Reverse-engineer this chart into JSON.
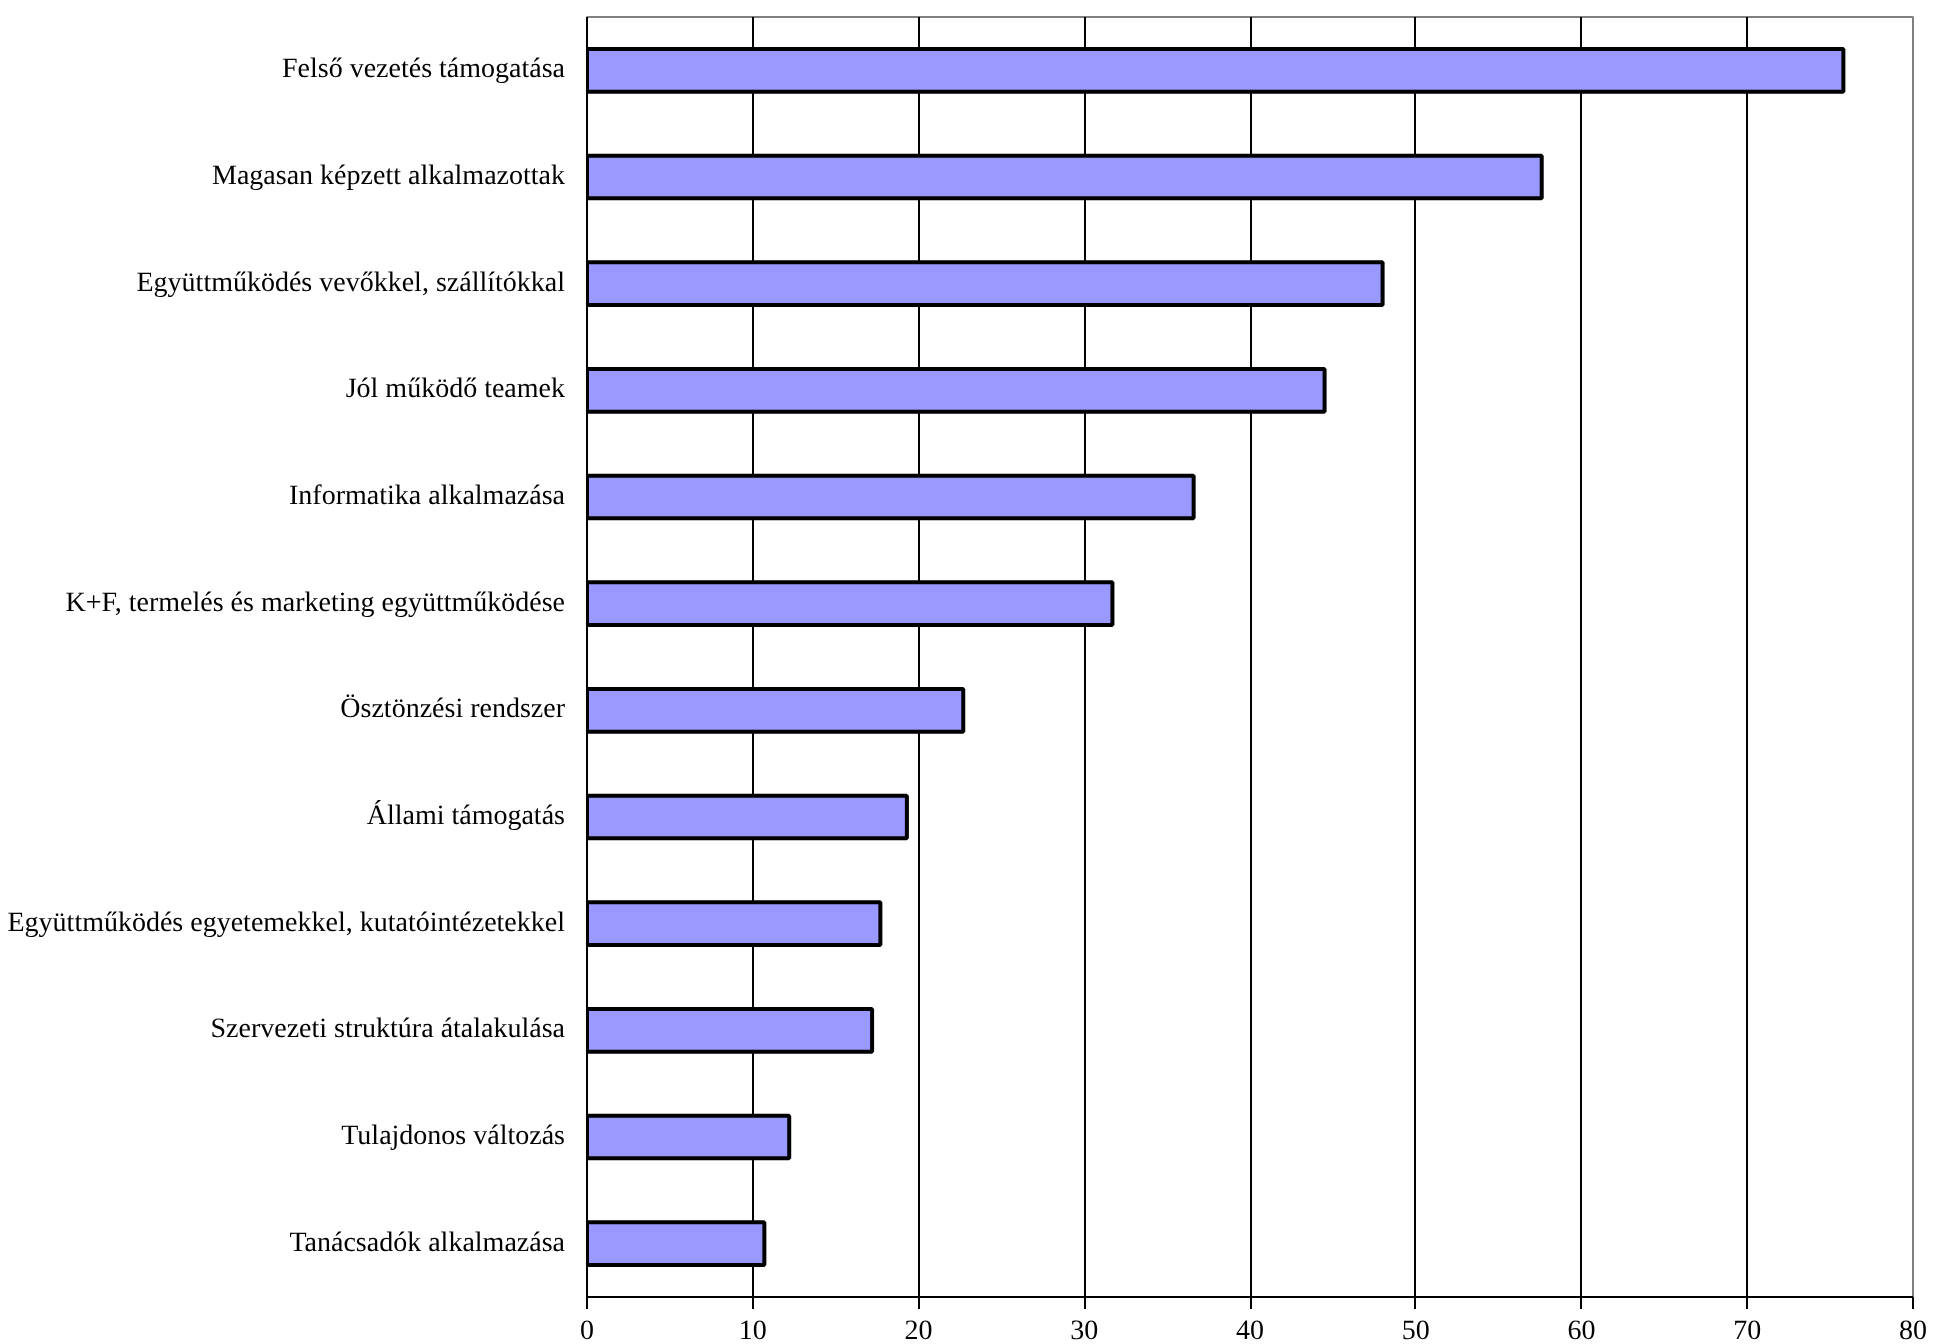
{
  "chart_data": {
    "type": "bar",
    "orientation": "horizontal",
    "categories": [
      "Felső vezetés támogatása",
      "Magasan képzett alkalmazottak",
      "Együttműködés vevőkkel, szállítókkal",
      "Jól működő teamek",
      "Informatika alkalmazása",
      "K+F, termelés és marketing együttműködése",
      "Ösztönzési rendszer",
      "Állami támogatás",
      "Együttműködés egyetemekkel, kutatóintézetekkel",
      "Szervezeti struktúra átalakulása",
      "Tulajdonos változás",
      "Tanácsadók alkalmazása"
    ],
    "values": [
      75.8,
      57.6,
      48.0,
      44.5,
      36.6,
      31.7,
      22.7,
      19.3,
      17.7,
      17.2,
      12.2,
      10.7
    ],
    "color": "#9999ff",
    "xlim": [
      0,
      80
    ],
    "xticks": [
      0,
      10,
      20,
      30,
      40,
      50,
      60,
      70,
      80
    ],
    "grid": "x"
  }
}
